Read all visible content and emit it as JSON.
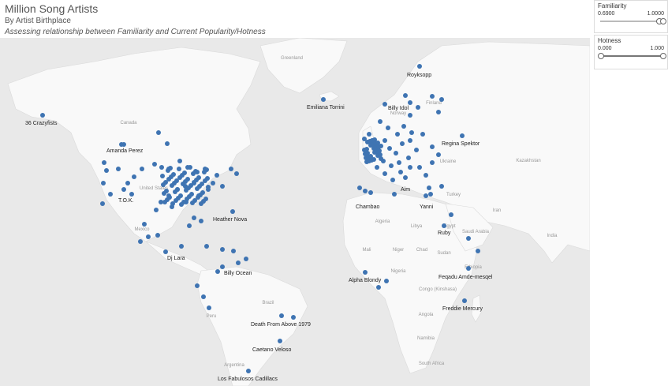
{
  "header": {
    "title": "Million Song Artists",
    "subtitle": "By Artist Birthplace",
    "description": "Assessing relationship between Familiarity and Current Popularity/Hotness"
  },
  "filters": {
    "familiarity": {
      "label": "Familiarity",
      "min_label": "0.6900",
      "max_label": "1.0000",
      "low": 0.69,
      "high": 1.0
    },
    "hotness": {
      "label": "Hotness",
      "min_label": "0.000",
      "max_label": "1.000",
      "low": 0.0,
      "high": 1.0
    }
  },
  "colors": {
    "dot": "#3f74b2",
    "land": "#f9f9f9",
    "water": "#e6e6e6"
  },
  "map_labels": {
    "greenland": "Greenland",
    "canada": "Canada",
    "united_states": "United States",
    "mexico": "Mexico",
    "brazil": "Brazil",
    "peru": "Peru",
    "argentina": "Argentina",
    "finland": "Finland",
    "norway": "Norway",
    "ukraine": "Ukraine",
    "kazakhstan": "Kazakhstan",
    "turkey": "Turkey",
    "iran": "Iran",
    "algeria": "Algeria",
    "libya": "Libya",
    "egypt": "Egypt",
    "saudi_arabia": "Saudi Arabia",
    "sudan": "Sudan",
    "mali": "Mali",
    "niger": "Niger",
    "chad": "Chad",
    "nigeria": "Nigeria",
    "ethiopia": "Ethiopia",
    "congo": "Congo (Kinshasa)",
    "angola": "Angola",
    "namibia": "Namibia",
    "south_africa": "South Africa",
    "india": "India"
  },
  "artists": [
    {
      "name": "36 Crazyfists"
    },
    {
      "name": "Amanda Perez"
    },
    {
      "name": "T.O.K."
    },
    {
      "name": "Heather Nova"
    },
    {
      "name": "Dj Lara"
    },
    {
      "name": "Billy Ocean"
    },
    {
      "name": "Death From Above 1979"
    },
    {
      "name": "Caetano Veloso"
    },
    {
      "name": "Los Fabulosos Cadillacs"
    },
    {
      "name": "Emiliana Torrini"
    },
    {
      "name": "Royksopp"
    },
    {
      "name": "Billy Idol"
    },
    {
      "name": "Regina Spektor"
    },
    {
      "name": "Aim"
    },
    {
      "name": "Chambao"
    },
    {
      "name": "Yanni"
    },
    {
      "name": "Ruby"
    },
    {
      "name": "Alpha Blondy"
    },
    {
      "name": "Feqadu Amde-mesqel"
    },
    {
      "name": "Freddie Mercury"
    }
  ]
}
